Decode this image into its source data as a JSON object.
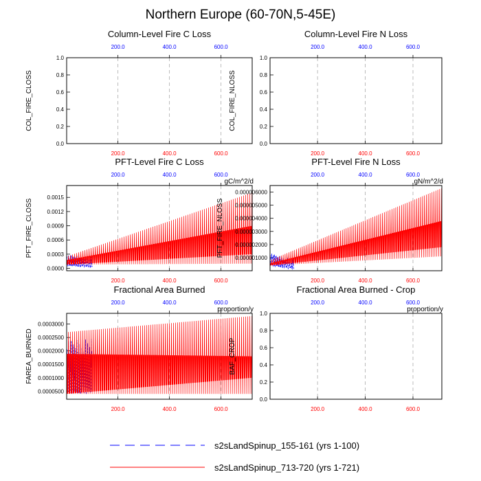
{
  "page": {
    "title": "Northern Europe (60-70N,5-45E)"
  },
  "colors": {
    "red_series": "#ff0000",
    "blue_series": "#0000ff",
    "grid": "#aaaaaa",
    "axis": "#000000"
  },
  "legend": [
    {
      "label": "s2sLandSpinup_155-161 (yrs 1-100)",
      "color": "#0000ff",
      "style": "dashed"
    },
    {
      "label": "s2sLandSpinup_713-720 (yrs 1-721)",
      "color": "#ff0000",
      "style": "solid"
    }
  ],
  "chart_data": [
    {
      "id": "col_fire_closs",
      "type": "line",
      "title": "Column-Level Fire C Loss",
      "ylabel": "COL_FIRE_CLOSS",
      "units": "",
      "xlim": [
        1,
        721
      ],
      "ylim": [
        0,
        1
      ],
      "yticks": [
        "0.0",
        "0.2",
        "0.4",
        "0.6",
        "0.8",
        "1.0"
      ],
      "xticks": [
        200,
        400,
        600
      ],
      "xtick_labels": [
        "200.0",
        "400.0",
        "600.0"
      ],
      "has_data": false
    },
    {
      "id": "col_fire_nloss",
      "type": "line",
      "title": "Column-Level Fire N Loss",
      "ylabel": "COL_FIRE_NLOSS",
      "units": "",
      "xlim": [
        1,
        721
      ],
      "ylim": [
        0,
        1
      ],
      "yticks": [
        "0.0",
        "0.2",
        "0.4",
        "0.6",
        "0.8",
        "1.0"
      ],
      "xticks": [
        200,
        400,
        600
      ],
      "xtick_labels": [
        "200.0",
        "400.0",
        "600.0"
      ],
      "has_data": false
    },
    {
      "id": "pft_fire_closs",
      "type": "line",
      "title": "PFT-Level Fire C Loss",
      "ylabel": "PFT_FIRE_CLOSS",
      "units": "gC/m^2/d",
      "xlim": [
        1,
        721
      ],
      "ylim": [
        -5e-05,
        0.00175
      ],
      "yticks": [
        "0.0000",
        "0.0003",
        "0.0006",
        "0.0009",
        "0.0012",
        "0.0015"
      ],
      "ytick_values": [
        0,
        0.0003,
        0.0006,
        0.0009,
        0.0012,
        0.0015
      ],
      "xticks": [
        200,
        400,
        600
      ],
      "xtick_labels": [
        "200.0",
        "400.0",
        "600.0"
      ],
      "has_data": true,
      "series": [
        {
          "name": "s2sLandSpinup_155-161 (yrs 1-100)",
          "years": [
            1,
            100
          ],
          "envelope_start": {
            "low": 5e-05,
            "high": 0.0003
          },
          "envelope_end": {
            "low": 2e-05,
            "high": 0.00025
          }
        },
        {
          "name": "s2sLandSpinup_713-720 (yrs 1-721)",
          "years": [
            1,
            721
          ],
          "envelope_start": {
            "low": 8e-05,
            "high": 0.00025
          },
          "envelope_end": {
            "low": 0.0001,
            "high": 0.0016
          },
          "band_end": {
            "low": 0.0003,
            "high": 0.0009
          }
        }
      ]
    },
    {
      "id": "pft_fire_nloss",
      "type": "line",
      "title": "PFT-Level Fire N Loss",
      "ylabel": "PFT_FIRE_NLOSS",
      "units": "gN/m^2/d",
      "xlim": [
        1,
        721
      ],
      "ylim": [
        0,
        6.5e-06
      ],
      "yticks": [
        "0.000001000",
        "0.000002000",
        "0.000003000",
        "0.000004000",
        "0.000005000",
        "0.000006000"
      ],
      "ytick_values": [
        1e-06,
        2e-06,
        3e-06,
        4e-06,
        5e-06,
        6e-06
      ],
      "xticks": [
        200,
        400,
        600
      ],
      "xtick_labels": [
        "200.0",
        "400.0",
        "600.0"
      ],
      "has_data": true,
      "series": [
        {
          "name": "s2sLandSpinup_155-161 (yrs 1-100)",
          "years": [
            1,
            100
          ],
          "envelope_start": {
            "low": 4e-07,
            "high": 1.4e-06
          },
          "envelope_end": {
            "low": 1e-07,
            "high": 9e-07
          }
        },
        {
          "name": "s2sLandSpinup_713-720 (yrs 1-721)",
          "years": [
            1,
            721
          ],
          "envelope_start": {
            "low": 4e-07,
            "high": 8e-07
          },
          "envelope_end": {
            "low": 1.1e-06,
            "high": 6.3e-06
          },
          "band_end": {
            "low": 1.8e-06,
            "high": 3.8e-06
          }
        }
      ]
    },
    {
      "id": "farea_burned",
      "type": "line",
      "title": "Fractional Area Burned",
      "ylabel": "FAREA_BURNED",
      "units": "proportion/y",
      "xlim": [
        1,
        721
      ],
      "ylim": [
        2e-05,
        0.00034
      ],
      "yticks": [
        "0.0000500",
        "0.0001000",
        "0.0001500",
        "0.0002000",
        "0.0002500",
        "0.0003000"
      ],
      "ytick_values": [
        5e-05,
        0.0001,
        0.00015,
        0.0002,
        0.00025,
        0.0003
      ],
      "xticks": [
        200,
        400,
        600
      ],
      "xtick_labels": [
        "200.0",
        "400.0",
        "600.0"
      ],
      "has_data": true,
      "series": [
        {
          "name": "s2sLandSpinup_155-161 (yrs 1-100)",
          "years": [
            1,
            100
          ],
          "envelope_start": {
            "low": 4e-05,
            "high": 0.00025
          },
          "envelope_end": {
            "low": 4e-05,
            "high": 0.00026
          }
        },
        {
          "name": "s2sLandSpinup_713-720 (yrs 1-721)",
          "years": [
            1,
            721
          ],
          "envelope_start": {
            "low": 4e-05,
            "high": 0.00027
          },
          "envelope_end": {
            "low": 4e-05,
            "high": 0.00033
          },
          "band_end": {
            "low": 0.0001,
            "high": 0.00018
          }
        }
      ]
    },
    {
      "id": "baf_crop",
      "type": "line",
      "title": "Fractional Area Burned - Crop",
      "ylabel": "BAF_CROP",
      "units": "proportion/y",
      "xlim": [
        1,
        721
      ],
      "ylim": [
        0,
        1
      ],
      "yticks": [
        "0.0",
        "0.2",
        "0.4",
        "0.6",
        "0.8",
        "1.0"
      ],
      "xticks": [
        200,
        400,
        600
      ],
      "xtick_labels": [
        "200.0",
        "400.0",
        "600.0"
      ],
      "has_data": false
    }
  ]
}
